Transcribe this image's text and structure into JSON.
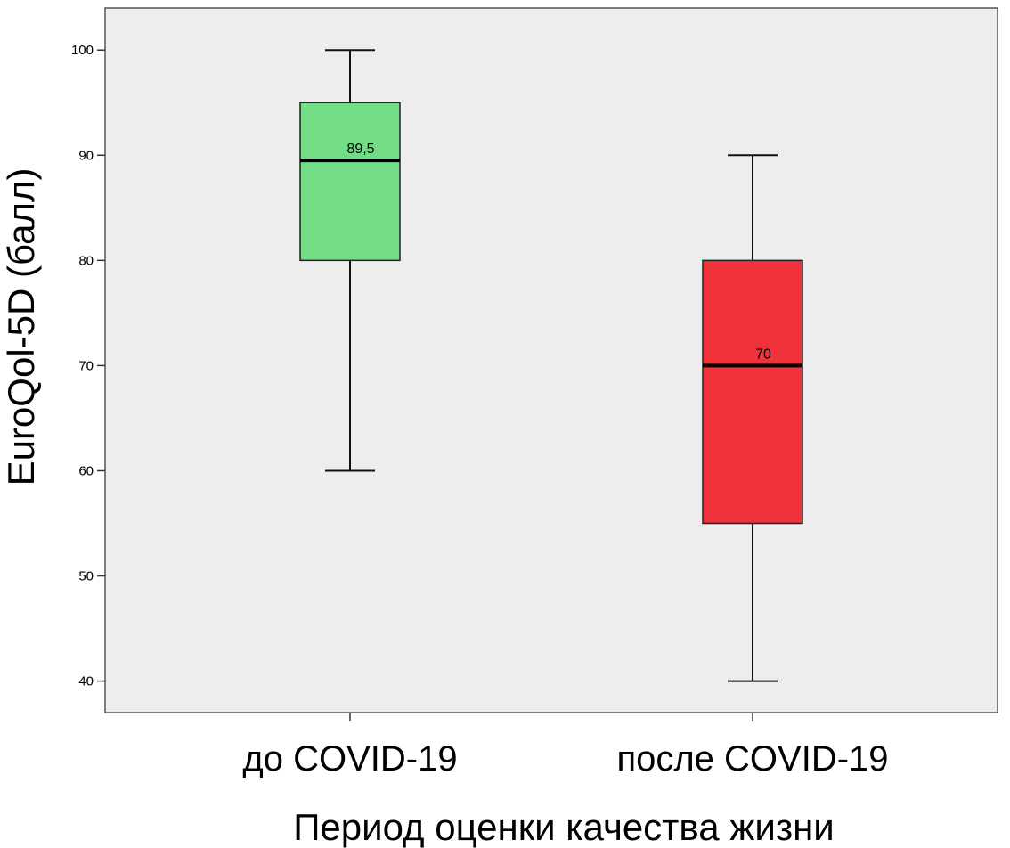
{
  "chart_data": {
    "type": "boxplot",
    "title": "",
    "xlabel": "Период оценки качества жизни",
    "ylabel": "EuroQol-5D (балл)",
    "ylim": [
      37,
      104
    ],
    "yticks": [
      40,
      50,
      60,
      70,
      80,
      90,
      100
    ],
    "grid": false,
    "background": "#ededed",
    "categories": [
      "до COVID-19",
      "после COVID-19"
    ],
    "boxes": [
      {
        "category": "до COVID-19",
        "min": 60,
        "q1": 80,
        "median": 89.5,
        "median_label": "89,5",
        "q3": 95,
        "max": 100,
        "color": "#72dd84"
      },
      {
        "category": "после COVID-19",
        "min": 40,
        "q1": 55,
        "median": 70,
        "median_label": "70",
        "q3": 80,
        "max": 90,
        "color": "#f0323a"
      }
    ]
  }
}
